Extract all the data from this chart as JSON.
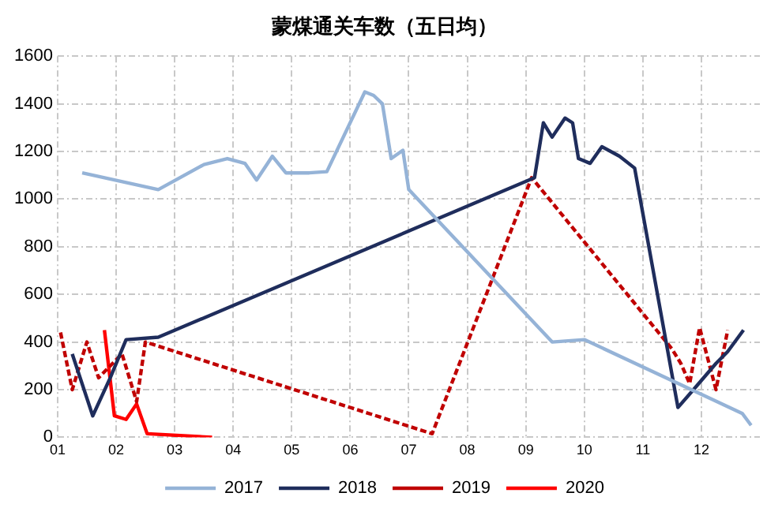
{
  "chart_data": {
    "type": "line",
    "title": "蒙煤通关车数（五日均）",
    "xlim": [
      1,
      13
    ],
    "xticks": [
      {
        "value": 1,
        "label": "01"
      },
      {
        "value": 2,
        "label": "02"
      },
      {
        "value": 3,
        "label": "03"
      },
      {
        "value": 4,
        "label": "04"
      },
      {
        "value": 5,
        "label": "05"
      },
      {
        "value": 6,
        "label": "06"
      },
      {
        "value": 7,
        "label": "07"
      },
      {
        "value": 8,
        "label": "08"
      },
      {
        "value": 9,
        "label": "09"
      },
      {
        "value": 10,
        "label": "10"
      },
      {
        "value": 11,
        "label": "11"
      },
      {
        "value": 12,
        "label": "12"
      }
    ],
    "ylim": [
      0,
      1600
    ],
    "yticks": [
      0,
      200,
      400,
      600,
      800,
      1000,
      1200,
      1400,
      1600
    ],
    "grid": true,
    "legend": "bottom",
    "marker": "none",
    "series": [
      {
        "name": "2017",
        "color": "#95b3d7",
        "line_style": "solid",
        "x": [
          1.42,
          2.72,
          3.5,
          3.9,
          4.2,
          4.4,
          4.67,
          4.9,
          5.3,
          5.6,
          6.25,
          6.4,
          6.55,
          6.7,
          6.9,
          7.0,
          9.45,
          10.0,
          12.7,
          12.85
        ],
        "values": [
          1110,
          1040,
          1145,
          1170,
          1150,
          1080,
          1180,
          1110,
          1110,
          1115,
          1450,
          1435,
          1400,
          1170,
          1205,
          1040,
          400,
          410,
          100,
          50
        ]
      },
      {
        "name": "2018",
        "color": "#1f2d5c",
        "line_style": "solid",
        "x": [
          1.25,
          1.6,
          1.9,
          2.17,
          2.72,
          9.15,
          9.3,
          9.45,
          9.67,
          9.8,
          9.9,
          10.1,
          10.3,
          10.6,
          10.86,
          11.6,
          11.9,
          12.25,
          12.45,
          12.72
        ],
        "values": [
          350,
          90,
          250,
          410,
          420,
          1090,
          1320,
          1260,
          1340,
          1320,
          1170,
          1150,
          1220,
          1180,
          1130,
          125,
          210,
          310,
          360,
          450
        ]
      },
      {
        "name": "2019",
        "color": "#c00000",
        "line_style": "dashed",
        "x": [
          1.05,
          1.25,
          1.5,
          1.7,
          2.1,
          2.35,
          2.5,
          7.4,
          9.1,
          11.5,
          11.65,
          11.8,
          11.97,
          12.25,
          12.45
        ],
        "values": [
          440,
          200,
          400,
          250,
          350,
          150,
          400,
          15,
          1090,
          370,
          310,
          225,
          460,
          200,
          450
        ]
      },
      {
        "name": "2020",
        "color": "#ff0000",
        "line_style": "solid",
        "x": [
          1.8,
          1.97,
          2.17,
          2.35,
          2.53,
          3.64
        ],
        "values": [
          450,
          90,
          75,
          140,
          15,
          0
        ]
      }
    ]
  }
}
